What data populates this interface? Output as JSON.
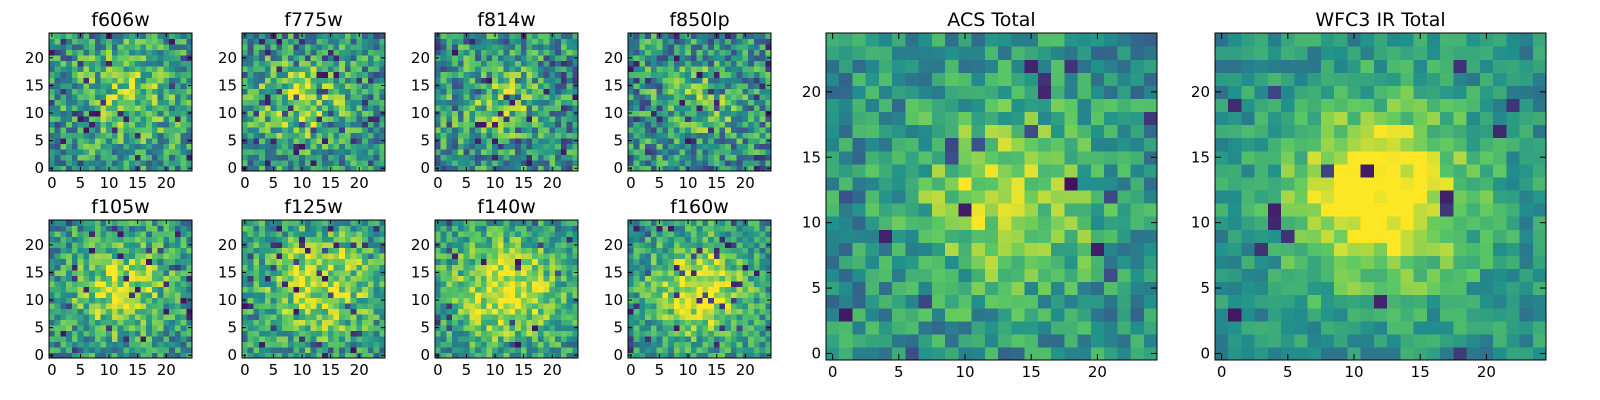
{
  "chart_data": [
    {
      "type": "heatmap",
      "title": "f606w",
      "grid": [
        25,
        25
      ],
      "xlim": [
        0,
        25
      ],
      "ylim": [
        0,
        25
      ],
      "xticks": [
        "0",
        "5",
        "10",
        "15",
        "20"
      ],
      "yticks": [
        "0",
        "5",
        "10",
        "15",
        "20"
      ],
      "peak": [
        13,
        13
      ],
      "peak_sigma": 7,
      "peak_strength": 0.25,
      "noise": 0.55,
      "low_spike_rate": 0.06,
      "seed": 11
    },
    {
      "type": "heatmap",
      "title": "f775w",
      "grid": [
        25,
        25
      ],
      "xlim": [
        0,
        25
      ],
      "ylim": [
        0,
        25
      ],
      "xticks": [
        "0",
        "5",
        "10",
        "15",
        "20"
      ],
      "yticks": [
        "0",
        "5",
        "10",
        "15",
        "20"
      ],
      "peak": [
        10,
        12
      ],
      "peak_sigma": 6,
      "peak_strength": 0.3,
      "noise": 0.55,
      "low_spike_rate": 0.07,
      "seed": 23
    },
    {
      "type": "heatmap",
      "title": "f814w",
      "grid": [
        25,
        25
      ],
      "xlim": [
        0,
        25
      ],
      "ylim": [
        0,
        25
      ],
      "xticks": [
        "0",
        "5",
        "10",
        "15",
        "20"
      ],
      "yticks": [
        "0",
        "5",
        "10",
        "15",
        "20"
      ],
      "peak": [
        11,
        12
      ],
      "peak_sigma": 5,
      "peak_strength": 0.25,
      "noise": 0.6,
      "low_spike_rate": 0.07,
      "seed": 37
    },
    {
      "type": "heatmap",
      "title": "f850lp",
      "grid": [
        25,
        25
      ],
      "xlim": [
        0,
        25
      ],
      "ylim": [
        0,
        25
      ],
      "xticks": [
        "0",
        "5",
        "10",
        "15",
        "20"
      ],
      "yticks": [
        "0",
        "5",
        "10",
        "15",
        "20"
      ],
      "peak": [
        12,
        12
      ],
      "peak_sigma": 5,
      "peak_strength": 0.2,
      "noise": 0.6,
      "low_spike_rate": 0.09,
      "seed": 41
    },
    {
      "type": "heatmap",
      "title": "f105w",
      "grid": [
        25,
        25
      ],
      "xlim": [
        0,
        25
      ],
      "ylim": [
        0,
        25
      ],
      "xticks": [
        "0",
        "5",
        "10",
        "15",
        "20"
      ],
      "yticks": [
        "0",
        "5",
        "10",
        "15",
        "20"
      ],
      "peak": [
        12,
        12
      ],
      "peak_sigma": 6,
      "peak_strength": 0.4,
      "noise": 0.5,
      "low_spike_rate": 0.05,
      "seed": 53
    },
    {
      "type": "heatmap",
      "title": "f125w",
      "grid": [
        25,
        25
      ],
      "xlim": [
        0,
        25
      ],
      "ylim": [
        0,
        25
      ],
      "xticks": [
        "0",
        "5",
        "10",
        "15",
        "20"
      ],
      "yticks": [
        "0",
        "5",
        "10",
        "15",
        "20"
      ],
      "peak": [
        13,
        13
      ],
      "peak_sigma": 7,
      "peak_strength": 0.4,
      "noise": 0.5,
      "low_spike_rate": 0.05,
      "seed": 67
    },
    {
      "type": "heatmap",
      "title": "f140w",
      "grid": [
        25,
        25
      ],
      "xlim": [
        0,
        25
      ],
      "ylim": [
        0,
        25
      ],
      "xticks": [
        "0",
        "5",
        "10",
        "15",
        "20"
      ],
      "yticks": [
        "0",
        "5",
        "10",
        "15",
        "20"
      ],
      "peak": [
        12,
        12
      ],
      "peak_sigma": 7,
      "peak_strength": 0.45,
      "noise": 0.45,
      "low_spike_rate": 0.04,
      "seed": 79
    },
    {
      "type": "heatmap",
      "title": "f160w",
      "grid": [
        25,
        25
      ],
      "xlim": [
        0,
        25
      ],
      "ylim": [
        0,
        25
      ],
      "xticks": [
        "0",
        "5",
        "10",
        "15",
        "20"
      ],
      "yticks": [
        "0",
        "5",
        "10",
        "15",
        "20"
      ],
      "peak": [
        12,
        12
      ],
      "peak_sigma": 6,
      "peak_strength": 0.5,
      "noise": 0.45,
      "low_spike_rate": 0.05,
      "seed": 83
    },
    {
      "type": "heatmap",
      "title": "ACS Total",
      "grid": [
        25,
        25
      ],
      "xlim": [
        0,
        25
      ],
      "ylim": [
        0,
        25
      ],
      "xticks": [
        "0",
        "5",
        "10",
        "15",
        "20"
      ],
      "yticks": [
        "0",
        "5",
        "10",
        "15",
        "20"
      ],
      "peak": [
        13,
        12
      ],
      "peak_sigma": 5,
      "peak_strength": 0.4,
      "noise": 0.4,
      "low_spike_rate": 0.03,
      "seed": 97
    },
    {
      "type": "heatmap",
      "title": "WFC3 IR Total",
      "grid": [
        25,
        25
      ],
      "xlim": [
        0,
        25
      ],
      "ylim": [
        0,
        25
      ],
      "xticks": [
        "0",
        "5",
        "10",
        "15",
        "20"
      ],
      "yticks": [
        "0",
        "5",
        "10",
        "15",
        "20"
      ],
      "peak": [
        12,
        12
      ],
      "peak_sigma": 5,
      "peak_strength": 0.6,
      "noise": 0.3,
      "low_spike_rate": 0.03,
      "seed": 101
    }
  ],
  "colormap": [
    "#440154",
    "#3b528b",
    "#21918c",
    "#5ec962",
    "#fde725"
  ],
  "frame_color": "#000000"
}
